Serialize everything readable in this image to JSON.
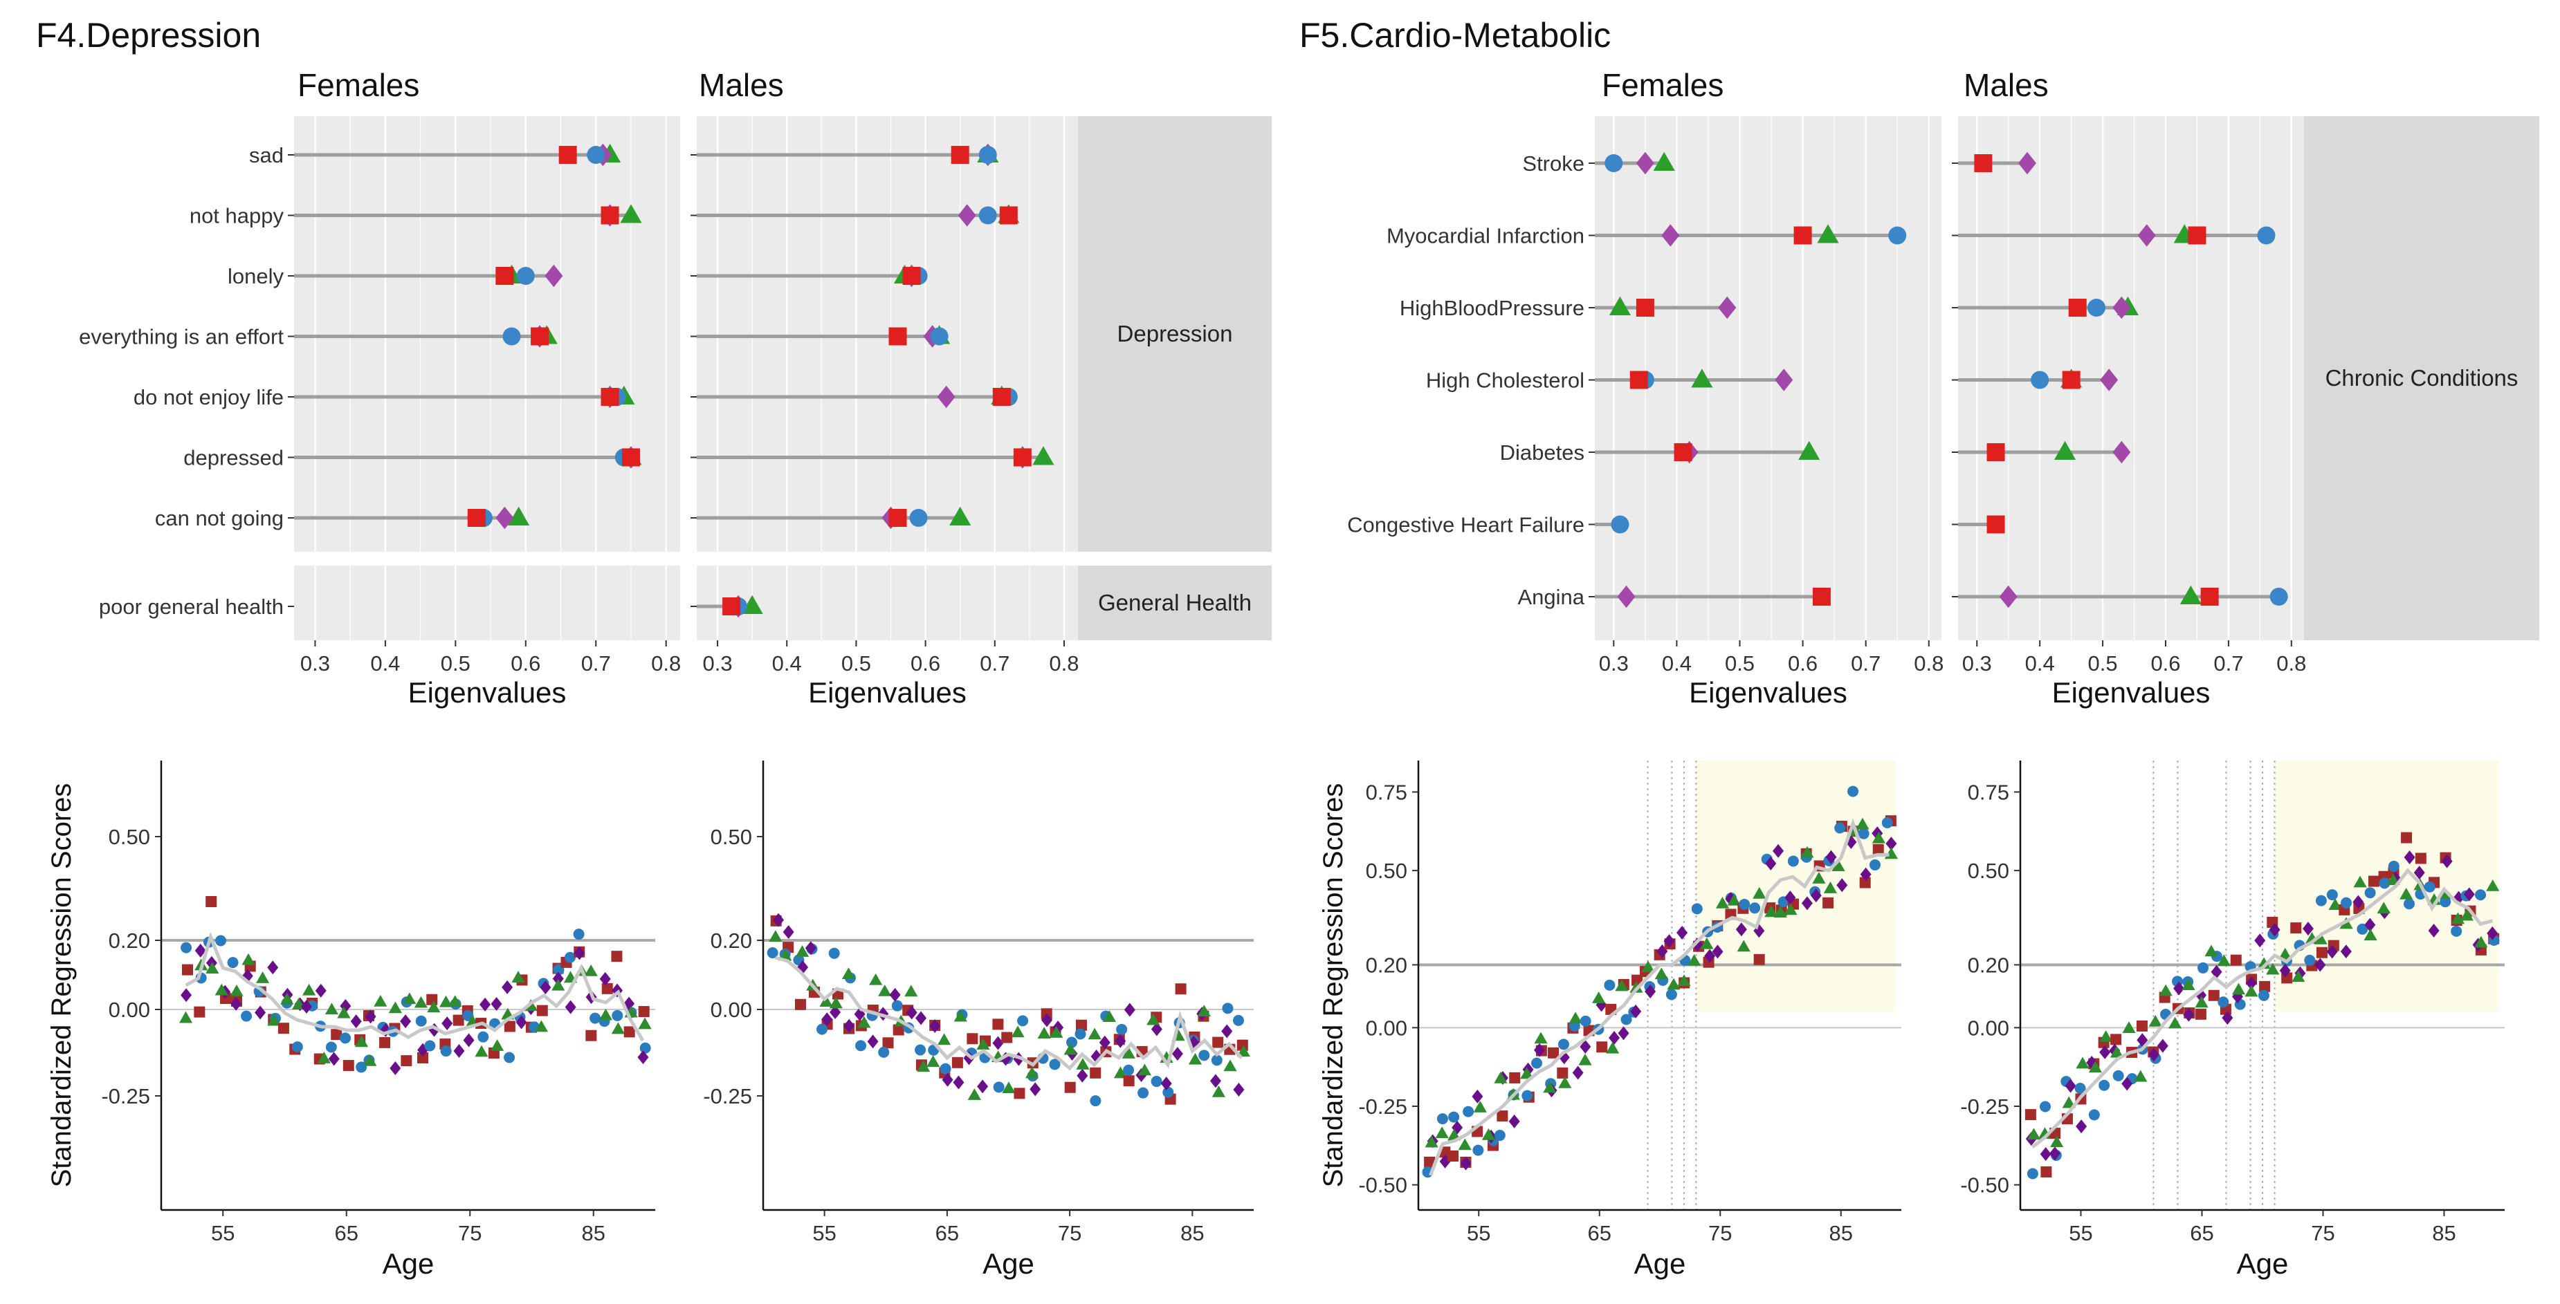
{
  "chart_data": [
    {
      "id": "f4-top",
      "type": "dot-plot",
      "title": "F4.Depression",
      "panels": [
        "Females",
        "Males"
      ],
      "xlabel": "Eigenvalues",
      "xlim": [
        0.27,
        0.82
      ],
      "xticks": [
        "0.3",
        "0.4",
        "0.5",
        "0.6",
        "0.7",
        "0.8"
      ],
      "groups": [
        {
          "label": "Depression",
          "items": [
            {
              "label": "sad",
              "females": [
                0.66,
                0.7,
                0.71,
                0.72
              ],
              "males": [
                0.65,
                0.69,
                0.69,
                0.69
              ]
            },
            {
              "label": "not happy",
              "females": [
                0.72,
                0.72,
                0.72,
                0.75
              ],
              "males": [
                0.72,
                0.69,
                0.66,
                0.72
              ]
            },
            {
              "label": "lonely",
              "females": [
                0.57,
                0.6,
                0.64,
                0.58
              ],
              "males": [
                0.58,
                0.59,
                0.58,
                0.57
              ]
            },
            {
              "label": "everything is an effort",
              "females": [
                0.62,
                0.58,
                0.62,
                0.63
              ],
              "males": [
                0.56,
                0.62,
                0.61,
                0.62
              ]
            },
            {
              "label": "do not enjoy life",
              "females": [
                0.72,
                0.73,
                0.72,
                0.74
              ],
              "males": [
                0.71,
                0.72,
                0.63,
                0.71
              ]
            },
            {
              "label": "depressed",
              "females": [
                0.75,
                0.74,
                0.75,
                0.75
              ],
              "males": [
                0.74,
                0.74,
                0.74,
                0.77
              ]
            },
            {
              "label": "can not going",
              "females": [
                0.53,
                0.54,
                0.57,
                0.59
              ],
              "males": [
                0.56,
                0.59,
                0.55,
                0.65
              ]
            }
          ]
        },
        {
          "label": "General Health",
          "items": [
            {
              "label": "poor general health",
              "females": [
                null,
                null,
                null,
                null
              ],
              "males": [
                0.32,
                0.33,
                0.33,
                0.35
              ]
            }
          ]
        }
      ]
    },
    {
      "id": "f5-top",
      "type": "dot-plot",
      "title": "F5.Cardio-Metabolic",
      "panels": [
        "Females",
        "Males"
      ],
      "xlabel": "Eigenvalues",
      "xlim": [
        0.27,
        0.82
      ],
      "xticks": [
        "0.3",
        "0.4",
        "0.5",
        "0.6",
        "0.7",
        "0.8"
      ],
      "groups": [
        {
          "label": "Chronic Conditions",
          "items": [
            {
              "label": "Stroke",
              "females": [
                null,
                0.3,
                0.35,
                0.38
              ],
              "males": [
                0.31,
                null,
                0.38,
                null
              ]
            },
            {
              "label": "Myocardial Infarction",
              "females": [
                0.6,
                0.75,
                0.39,
                0.64
              ],
              "males": [
                0.65,
                0.76,
                0.57,
                0.63
              ]
            },
            {
              "label": "HighBloodPressure",
              "females": [
                0.35,
                0.35,
                0.48,
                0.31
              ],
              "males": [
                0.46,
                0.49,
                0.53,
                0.54
              ]
            },
            {
              "label": "High Cholesterol",
              "females": [
                0.34,
                0.35,
                0.57,
                0.44
              ],
              "males": [
                0.45,
                0.4,
                0.51,
                0.45
              ]
            },
            {
              "label": "Diabetes",
              "females": [
                0.41,
                null,
                0.42,
                0.61
              ],
              "males": [
                0.33,
                null,
                0.53,
                0.44
              ]
            },
            {
              "label": "Congestive Heart Failure",
              "females": [
                null,
                0.31,
                null,
                null
              ],
              "males": [
                0.33,
                null,
                null,
                null
              ]
            },
            {
              "label": "Angina",
              "females": [
                0.63,
                null,
                0.32,
                null
              ],
              "males": [
                0.67,
                0.78,
                0.35,
                0.64
              ]
            }
          ]
        }
      ]
    },
    {
      "id": "f4-bottom",
      "type": "scatter",
      "panels": [
        "Females",
        "Males"
      ],
      "xlabel": "Age",
      "ylabel": "Standardized Regression Scores",
      "xlim": [
        50,
        90
      ],
      "ylim": [
        -0.58,
        0.72
      ],
      "xticks": [
        "55",
        "65",
        "75",
        "85"
      ],
      "yticks": [
        "0.50",
        "0.20",
        "0.00",
        "-0.25"
      ],
      "hline_values": [
        0.2,
        0.0
      ],
      "series_shapes": [
        "square",
        "circle",
        "diamond",
        "triangle"
      ],
      "females_trend": [
        [
          52,
          0.07
        ],
        [
          53,
          0.09
        ],
        [
          54,
          0.21
        ],
        [
          55,
          0.12
        ],
        [
          56,
          0.11
        ],
        [
          57,
          0.08
        ],
        [
          58,
          0.06
        ],
        [
          59,
          0.03
        ],
        [
          60,
          -0.01
        ],
        [
          61,
          -0.03
        ],
        [
          62,
          -0.04
        ],
        [
          63,
          -0.05
        ],
        [
          64,
          -0.05
        ],
        [
          65,
          -0.06
        ],
        [
          66,
          -0.06
        ],
        [
          67,
          -0.05
        ],
        [
          68,
          -0.07
        ],
        [
          69,
          -0.06
        ],
        [
          70,
          -0.08
        ],
        [
          71,
          -0.06
        ],
        [
          72,
          -0.05
        ],
        [
          73,
          -0.07
        ],
        [
          74,
          -0.06
        ],
        [
          75,
          -0.05
        ],
        [
          76,
          -0.04
        ],
        [
          77,
          -0.06
        ],
        [
          78,
          -0.03
        ],
        [
          79,
          -0.01
        ],
        [
          80,
          0.02
        ],
        [
          81,
          0.04
        ],
        [
          82,
          0.01
        ],
        [
          83,
          0.05
        ],
        [
          84,
          0.12
        ],
        [
          85,
          0.03
        ],
        [
          86,
          0.02
        ],
        [
          87,
          0.05
        ],
        [
          88,
          -0.03
        ],
        [
          89,
          -0.09
        ]
      ],
      "males_trend": [
        [
          51,
          0.15
        ],
        [
          52,
          0.14
        ],
        [
          53,
          0.11
        ],
        [
          54,
          0.07
        ],
        [
          55,
          0.03
        ],
        [
          56,
          0.06
        ],
        [
          57,
          0.05
        ],
        [
          58,
          0.0
        ],
        [
          59,
          -0.01
        ],
        [
          60,
          -0.02
        ],
        [
          61,
          -0.03
        ],
        [
          62,
          -0.05
        ],
        [
          63,
          -0.08
        ],
        [
          64,
          -0.1
        ],
        [
          65,
          -0.14
        ],
        [
          66,
          -0.11
        ],
        [
          67,
          -0.14
        ],
        [
          68,
          -0.12
        ],
        [
          69,
          -0.15
        ],
        [
          70,
          -0.13
        ],
        [
          71,
          -0.14
        ],
        [
          72,
          -0.16
        ],
        [
          73,
          -0.12
        ],
        [
          74,
          -0.14
        ],
        [
          75,
          -0.17
        ],
        [
          76,
          -0.13
        ],
        [
          77,
          -0.16
        ],
        [
          78,
          -0.12
        ],
        [
          79,
          -0.14
        ],
        [
          80,
          -0.1
        ],
        [
          81,
          -0.14
        ],
        [
          82,
          -0.11
        ],
        [
          83,
          -0.16
        ],
        [
          84,
          -0.02
        ],
        [
          85,
          -0.12
        ],
        [
          86,
          -0.09
        ],
        [
          87,
          -0.13
        ],
        [
          88,
          -0.1
        ],
        [
          89,
          -0.14
        ]
      ]
    },
    {
      "id": "f5-bottom",
      "type": "scatter",
      "panels": [
        "Females",
        "Males"
      ],
      "xlabel": "Age",
      "ylabel": "Standardized Regression Scores",
      "xlim": [
        50,
        90
      ],
      "ylim": [
        -0.58,
        0.85
      ],
      "xticks": [
        "55",
        "65",
        "75",
        "85"
      ],
      "yticks": [
        "0.75",
        "0.50",
        "0.20",
        "0.00",
        "-0.25",
        "-0.50"
      ],
      "hline_values": [
        0.2,
        0.0
      ],
      "highlight_ranges": {
        "females": [
          73,
          89
        ],
        "males": [
          71,
          89
        ]
      },
      "dotted_lines": {
        "females": [
          69,
          71,
          72,
          73
        ],
        "males": [
          61,
          63,
          67,
          69,
          70,
          71
        ]
      },
      "series_shapes": [
        "square",
        "circle",
        "diamond",
        "triangle"
      ],
      "females_trend": [
        [
          51,
          -0.47
        ],
        [
          52,
          -0.37
        ],
        [
          53,
          -0.36
        ],
        [
          54,
          -0.34
        ],
        [
          55,
          -0.31
        ],
        [
          56,
          -0.28
        ],
        [
          57,
          -0.25
        ],
        [
          58,
          -0.21
        ],
        [
          59,
          -0.17
        ],
        [
          60,
          -0.14
        ],
        [
          61,
          -0.12
        ],
        [
          62,
          -0.08
        ],
        [
          63,
          -0.06
        ],
        [
          64,
          -0.03
        ],
        [
          65,
          0.0
        ],
        [
          66,
          0.04
        ],
        [
          67,
          0.07
        ],
        [
          68,
          0.12
        ],
        [
          69,
          0.16
        ],
        [
          70,
          0.2
        ],
        [
          71,
          0.2
        ],
        [
          72,
          0.23
        ],
        [
          73,
          0.27
        ],
        [
          74,
          0.31
        ],
        [
          75,
          0.33
        ],
        [
          76,
          0.35
        ],
        [
          77,
          0.34
        ],
        [
          78,
          0.32
        ],
        [
          79,
          0.43
        ],
        [
          80,
          0.47
        ],
        [
          81,
          0.48
        ],
        [
          82,
          0.45
        ],
        [
          83,
          0.51
        ],
        [
          84,
          0.5
        ],
        [
          85,
          0.54
        ],
        [
          86,
          0.65
        ],
        [
          87,
          0.54
        ],
        [
          88,
          0.55
        ],
        [
          89,
          0.55
        ]
      ],
      "males_trend": [
        [
          51,
          -0.38
        ],
        [
          52,
          -0.35
        ],
        [
          53,
          -0.31
        ],
        [
          54,
          -0.27
        ],
        [
          55,
          -0.22
        ],
        [
          56,
          -0.18
        ],
        [
          57,
          -0.14
        ],
        [
          58,
          -0.1
        ],
        [
          59,
          -0.08
        ],
        [
          60,
          -0.07
        ],
        [
          61,
          -0.03
        ],
        [
          62,
          0.02
        ],
        [
          63,
          0.06
        ],
        [
          64,
          0.09
        ],
        [
          65,
          0.12
        ],
        [
          66,
          0.16
        ],
        [
          67,
          0.13
        ],
        [
          68,
          0.16
        ],
        [
          69,
          0.18
        ],
        [
          70,
          0.19
        ],
        [
          71,
          0.23
        ],
        [
          72,
          0.21
        ],
        [
          73,
          0.25
        ],
        [
          74,
          0.27
        ],
        [
          75,
          0.3
        ],
        [
          76,
          0.32
        ],
        [
          77,
          0.34
        ],
        [
          78,
          0.36
        ],
        [
          79,
          0.39
        ],
        [
          80,
          0.42
        ],
        [
          81,
          0.45
        ],
        [
          82,
          0.5
        ],
        [
          83,
          0.46
        ],
        [
          84,
          0.38
        ],
        [
          85,
          0.44
        ],
        [
          86,
          0.4
        ],
        [
          87,
          0.38
        ],
        [
          88,
          0.33
        ],
        [
          89,
          0.34
        ]
      ]
    }
  ],
  "legend_colors": {
    "square": "#e01f1f",
    "circle": "#3a86c8",
    "diamond": "#a148a8",
    "triangle": "#2aa02b"
  },
  "scatter_colors": {
    "square": "#a52a2a",
    "circle": "#2b7bbf",
    "diamond": "#6a0f8a",
    "triangle": "#2e8b2e"
  },
  "trend_color": "#c8c8c8"
}
